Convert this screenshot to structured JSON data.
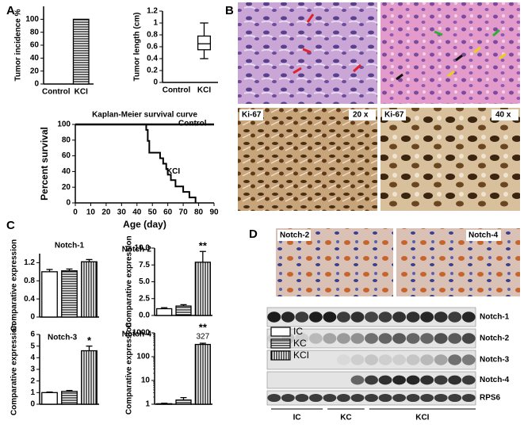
{
  "panel_labels": [
    "A",
    "B",
    "C",
    "D"
  ],
  "micrographs": {
    "ki67_left": {
      "stain": "Ki-67",
      "zoom": "20 x"
    },
    "ki67_right": {
      "stain": "Ki-67",
      "zoom": "40 x"
    },
    "notch_left": "Notch-2",
    "notch_right": "Notch-4"
  },
  "western_blot": {
    "bands": [
      "Notch-1",
      "Notch-2",
      "Notch-3",
      "Notch-4",
      "RPS6"
    ],
    "groups": [
      "IC",
      "KC",
      "KCI"
    ]
  },
  "chart_data": [
    {
      "type": "bar",
      "ylabel": "Tumor incidence %",
      "categories": [
        "Control",
        "KCI"
      ],
      "values": [
        0,
        100
      ],
      "ylim": [
        0,
        120
      ],
      "yticks": [
        0,
        20,
        40,
        60,
        80,
        100
      ],
      "color": "#000000"
    },
    {
      "type": "box",
      "ylabel": "Tumor length (cm)",
      "categories": [
        "Control",
        "KCI"
      ],
      "whisker_low": [
        null,
        0.4
      ],
      "q1": [
        null,
        0.55
      ],
      "median": [
        null,
        0.65
      ],
      "q3": [
        null,
        0.78
      ],
      "whisker_high": [
        null,
        1.0
      ],
      "ylim": [
        0,
        1.2
      ],
      "yticks": [
        0,
        0.2,
        0.4,
        0.6,
        0.8,
        1,
        1.2
      ]
    },
    {
      "type": "line",
      "title": "Kaplan-Meier survival curve",
      "xlabel": "Age (day)",
      "ylabel": "Percent survival",
      "xlim": [
        0,
        90
      ],
      "xticks": [
        0,
        10,
        20,
        30,
        40,
        50,
        60,
        70,
        80,
        90
      ],
      "ylim": [
        0,
        100
      ],
      "yticks": [
        0,
        20,
        40,
        60,
        80,
        100
      ],
      "series": [
        {
          "name": "Control",
          "color": "#000000",
          "x": [
            0,
            90
          ],
          "values": [
            100,
            100
          ]
        },
        {
          "name": "KCI",
          "color": "#000000",
          "x": [
            0,
            46,
            46,
            47,
            47,
            47,
            47,
            48,
            48,
            48,
            48,
            55,
            55,
            57,
            57,
            59,
            59,
            60,
            60,
            62,
            62,
            65,
            65,
            70,
            70,
            74,
            74,
            78,
            78
          ],
          "values": [
            100,
            100,
            93,
            93,
            86,
            86,
            79,
            79,
            71,
            71,
            64,
            64,
            57,
            57,
            50,
            50,
            43,
            43,
            36,
            36,
            29,
            29,
            21,
            21,
            14,
            14,
            7,
            7,
            0
          ]
        }
      ]
    },
    {
      "type": "bar",
      "title": "Notch-1",
      "ylabel": "Comparative expression",
      "categories": [
        null,
        null,
        null
      ],
      "values": [
        1.0,
        1.02,
        1.22
      ],
      "errors": [
        0.05,
        0.04,
        0.05
      ],
      "ylim": [
        0,
        1.4
      ],
      "yticks": [
        0,
        0.4,
        0.8,
        1.2
      ]
    },
    {
      "type": "bar",
      "title": "Notch-2",
      "ylabel": "Comparative expression",
      "categories": [
        null,
        null,
        null
      ],
      "values": [
        1.0,
        1.4,
        7.9
      ],
      "errors": [
        0.15,
        0.2,
        1.6
      ],
      "significance": [
        null,
        null,
        "**"
      ],
      "ylim": [
        0,
        10
      ],
      "yticks": [
        {
          "value": 0,
          "label": "0.0"
        },
        {
          "value": 2.5,
          "label": "2.5"
        },
        {
          "value": 5,
          "label": "5.0"
        },
        {
          "value": 7.5,
          "label": "7.5"
        },
        {
          "value": 10,
          "label": "10.0"
        }
      ]
    },
    {
      "type": "bar",
      "title": "Notch-3",
      "ylabel": "Comparative expression",
      "categories": [
        null,
        null,
        null
      ],
      "values": [
        1.0,
        1.1,
        4.6
      ],
      "errors": [
        0.05,
        0.08,
        0.4
      ],
      "significance": [
        null,
        null,
        "*"
      ],
      "ylim": [
        0,
        6
      ],
      "yticks": [
        0,
        1,
        2,
        3,
        4,
        5,
        6
      ]
    },
    {
      "type": "bar",
      "title": "Notch-4",
      "ylabel": "Comparative expression",
      "categories": [
        null,
        null,
        null
      ],
      "values": [
        1.05,
        1.5,
        327
      ],
      "errors": [
        0.05,
        0.4,
        40
      ],
      "significance": [
        null,
        null,
        "**"
      ],
      "show_value": [
        false,
        false,
        true
      ],
      "log_scale": true,
      "ylim": [
        1,
        1000
      ],
      "yticks": [
        1,
        10,
        100,
        1000
      ],
      "legend": [
        "IC",
        "KC",
        "KCI"
      ]
    }
  ]
}
